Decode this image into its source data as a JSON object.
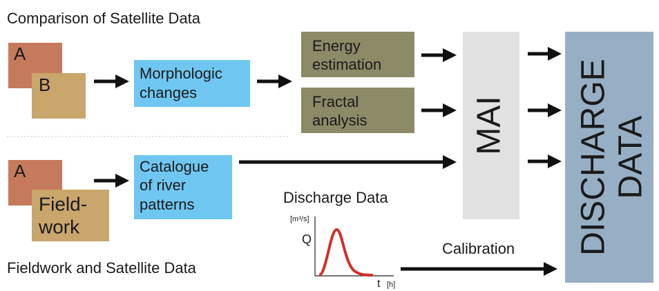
{
  "top_title": "Comparison of Satellite Data",
  "bottom_title": "Fieldwork and Satellite Data",
  "nodes": [
    {
      "lines": [
        "A"
      ]
    },
    {
      "lines": [
        "B"
      ]
    },
    {
      "lines": [
        "Morphologic",
        "changes"
      ]
    },
    {
      "lines": [
        "Energy",
        "estimation"
      ]
    },
    {
      "lines": [
        "Fractal",
        "analysis"
      ]
    },
    {
      "lines": [
        "MAI"
      ]
    },
    {
      "lines": [
        "DISCHARGE",
        "DATA"
      ]
    },
    {
      "lines": [
        "A"
      ]
    },
    {
      "lines": [
        "Field-",
        "work"
      ]
    },
    {
      "lines": [
        "Catalogue",
        "of river",
        "patterns"
      ]
    }
  ],
  "inset": {
    "title": "Discharge Data",
    "y_unit": "[m³/s]",
    "y_label": "Q",
    "x_label": "t",
    "x_unit": "[h]"
  },
  "calibration": "Calibration"
}
